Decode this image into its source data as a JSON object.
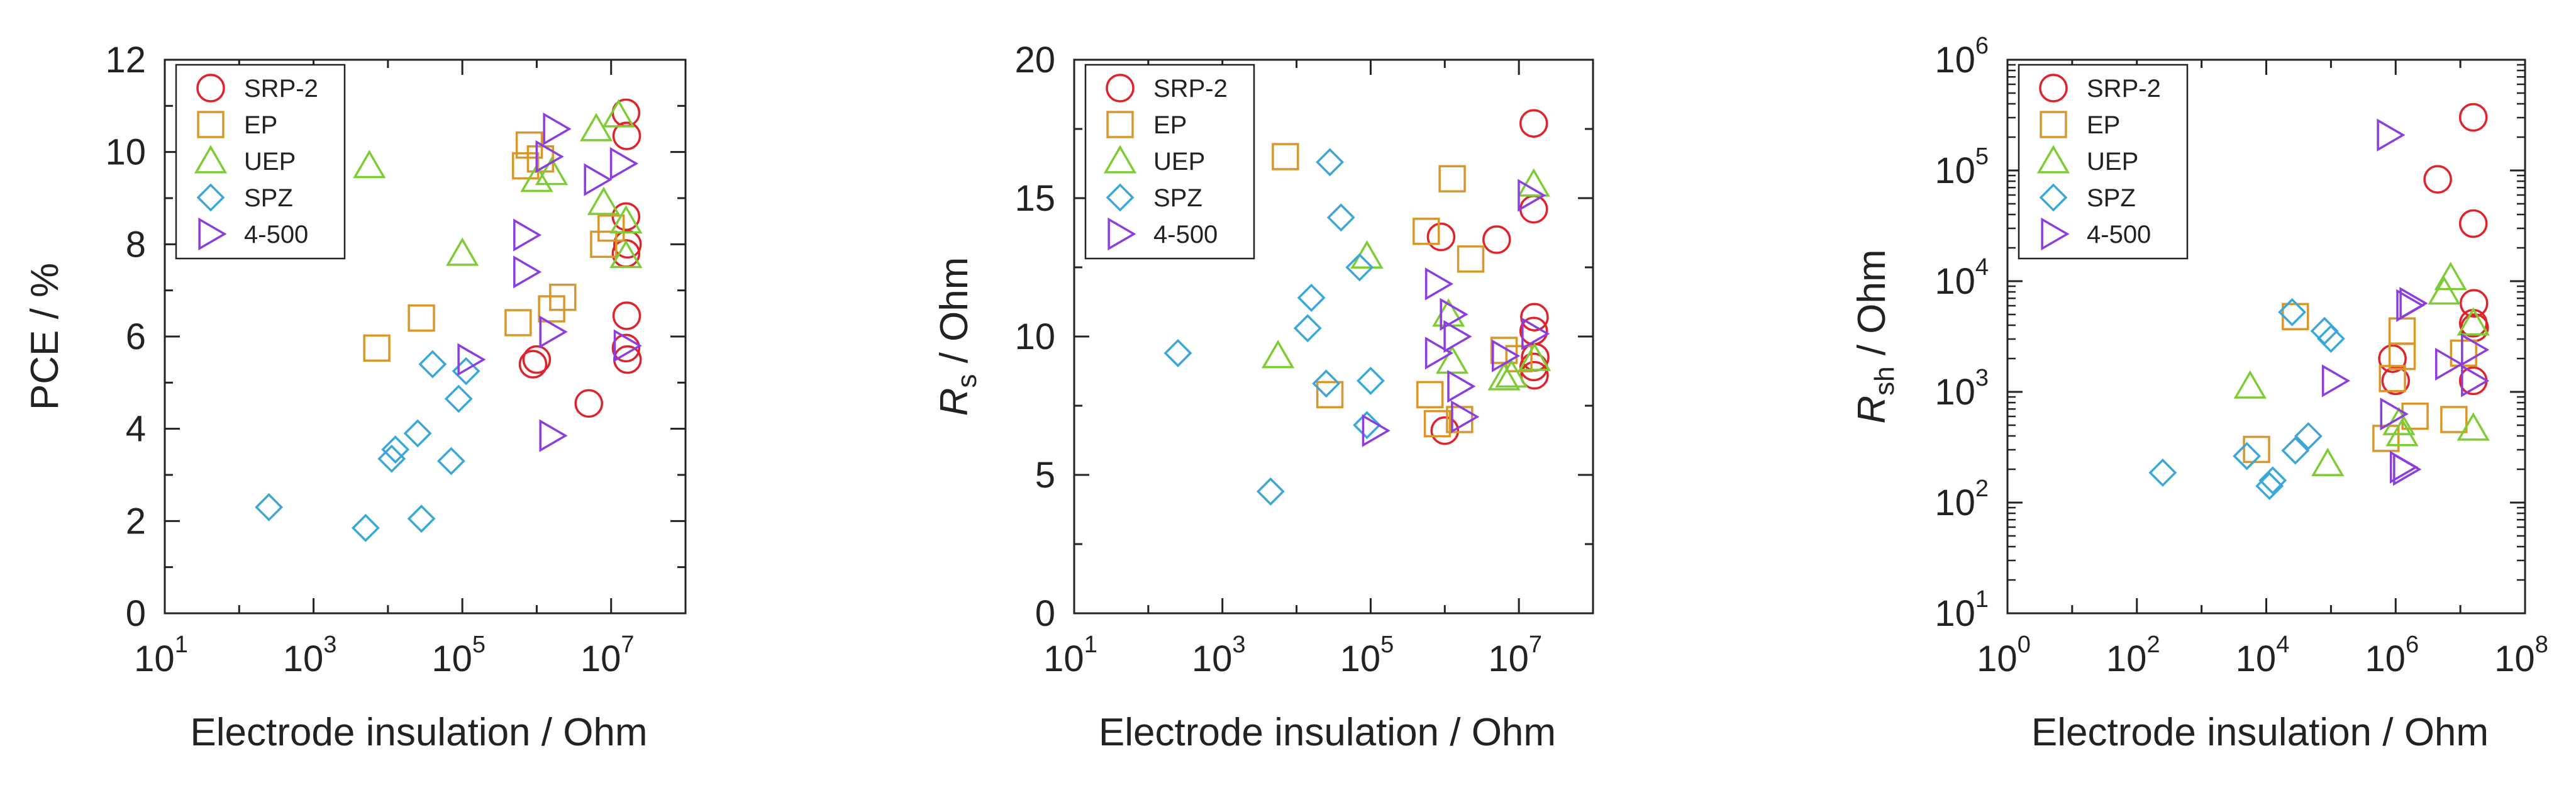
{
  "figure": {
    "background": "#ffffff",
    "axis_color": "#222222"
  },
  "legend_items": [
    {
      "key": "SRP-2",
      "label": "SRP-2",
      "marker": "circle",
      "color": "#e0232b"
    },
    {
      "key": "EP",
      "label": "EP",
      "marker": "square",
      "color": "#d9962b"
    },
    {
      "key": "UEP",
      "label": "UEP",
      "marker": "triangle-up",
      "color": "#7dcc33"
    },
    {
      "key": "SPZ",
      "label": "SPZ",
      "marker": "diamond",
      "color": "#39a7d8"
    },
    {
      "key": "4-500",
      "label": "4-500",
      "marker": "triangle-right",
      "color": "#8b3ddf"
    }
  ],
  "chart_data": [
    {
      "type": "scatter",
      "title": "",
      "xlabel": "Electrode insulation / Ohm",
      "ylabel": "PCE / %",
      "ylabel_parts": {
        "main": "PCE / %",
        "sub": ""
      },
      "xscale": "log",
      "yscale": "linear",
      "xlim_exponent": [
        1,
        8
      ],
      "ylim": [
        0,
        12
      ],
      "x_ticks": [
        {
          "base": "10",
          "exp": "1",
          "value": 1
        },
        {
          "base": "10",
          "exp": "3",
          "value": 3
        },
        {
          "base": "10",
          "exp": "5",
          "value": 5
        },
        {
          "base": "10",
          "exp": "7",
          "value": 7
        }
      ],
      "y_ticks": [
        {
          "label": "0",
          "value": 0
        },
        {
          "label": "2",
          "value": 2
        },
        {
          "label": "4",
          "value": 4
        },
        {
          "label": "6",
          "value": 6
        },
        {
          "label": "8",
          "value": 8
        },
        {
          "label": "10",
          "value": 10
        },
        {
          "label": "12",
          "value": 12
        }
      ],
      "legend": "top-left",
      "series": [
        {
          "name": "SRP-2",
          "points": [
            [
              5.95,
              5.4
            ],
            [
              6.0,
              5.5
            ],
            [
              6.7,
              4.55
            ],
            [
              7.2,
              10.85
            ],
            [
              7.21,
              10.35
            ],
            [
              7.2,
              8.6
            ],
            [
              7.22,
              8.0
            ],
            [
              7.2,
              7.8
            ],
            [
              7.21,
              6.45
            ],
            [
              7.2,
              5.75
            ],
            [
              7.22,
              5.5
            ]
          ]
        },
        {
          "name": "EP",
          "points": [
            [
              3.85,
              5.75
            ],
            [
              4.45,
              6.4
            ],
            [
              5.75,
              6.3
            ],
            [
              5.85,
              9.7
            ],
            [
              5.9,
              10.15
            ],
            [
              6.05,
              9.85
            ],
            [
              6.2,
              6.6
            ],
            [
              6.35,
              6.85
            ],
            [
              6.9,
              8.0
            ],
            [
              7.0,
              8.35
            ]
          ]
        },
        {
          "name": "UEP",
          "points": [
            [
              3.75,
              9.7
            ],
            [
              5.0,
              7.8
            ],
            [
              6.0,
              9.4
            ],
            [
              6.2,
              9.55
            ],
            [
              6.8,
              10.5
            ],
            [
              6.9,
              8.9
            ],
            [
              7.1,
              10.8
            ],
            [
              7.2,
              8.5
            ],
            [
              7.2,
              7.75
            ]
          ]
        },
        {
          "name": "SPZ",
          "points": [
            [
              2.4,
              2.3
            ],
            [
              3.7,
              1.85
            ],
            [
              4.05,
              3.35
            ],
            [
              4.1,
              3.55
            ],
            [
              4.4,
              3.9
            ],
            [
              4.45,
              2.05
            ],
            [
              4.6,
              5.4
            ],
            [
              4.85,
              3.3
            ],
            [
              4.95,
              4.65
            ],
            [
              5.05,
              5.25
            ]
          ]
        },
        {
          "name": "4-500",
          "points": [
            [
              5.1,
              5.5
            ],
            [
              5.85,
              8.2
            ],
            [
              5.85,
              7.4
            ],
            [
              6.15,
              9.9
            ],
            [
              6.2,
              6.1
            ],
            [
              6.2,
              3.85
            ],
            [
              6.25,
              10.5
            ],
            [
              6.8,
              9.4
            ],
            [
              7.15,
              9.75
            ],
            [
              7.2,
              5.8
            ]
          ]
        }
      ]
    },
    {
      "type": "scatter",
      "title": "",
      "xlabel": "Electrode insulation / Ohm",
      "ylabel": "Rs / Ohm",
      "ylabel_parts": {
        "main": "R",
        "sub": "s",
        "unit": " / Ohm"
      },
      "xscale": "log",
      "yscale": "linear",
      "xlim_exponent": [
        1,
        8
      ],
      "ylim": [
        0,
        20
      ],
      "x_ticks": [
        {
          "base": "10",
          "exp": "1",
          "value": 1
        },
        {
          "base": "10",
          "exp": "3",
          "value": 3
        },
        {
          "base": "10",
          "exp": "5",
          "value": 5
        },
        {
          "base": "10",
          "exp": "7",
          "value": 7
        }
      ],
      "y_ticks": [
        {
          "label": "0",
          "value": 0
        },
        {
          "label": "5",
          "value": 5
        },
        {
          "label": "10",
          "value": 10
        },
        {
          "label": "15",
          "value": 15
        },
        {
          "label": "20",
          "value": 20
        }
      ],
      "legend": "top-left",
      "series": [
        {
          "name": "SRP-2",
          "points": [
            [
              5.95,
              13.6
            ],
            [
              6.0,
              6.6
            ],
            [
              6.7,
              13.5
            ],
            [
              7.2,
              17.7
            ],
            [
              7.2,
              14.6
            ],
            [
              7.21,
              10.7
            ],
            [
              7.2,
              10.2
            ],
            [
              7.22,
              9.25
            ],
            [
              7.2,
              8.9
            ],
            [
              7.21,
              8.6
            ]
          ]
        },
        {
          "name": "EP",
          "points": [
            [
              3.85,
              16.5
            ],
            [
              4.45,
              7.9
            ],
            [
              5.75,
              13.8
            ],
            [
              5.8,
              7.9
            ],
            [
              5.9,
              6.85
            ],
            [
              6.1,
              15.7
            ],
            [
              6.2,
              7.0
            ],
            [
              6.35,
              12.8
            ],
            [
              6.8,
              9.5
            ],
            [
              7.0,
              9.2
            ]
          ]
        },
        {
          "name": "UEP",
          "points": [
            [
              3.75,
              9.3
            ],
            [
              4.95,
              12.9
            ],
            [
              6.05,
              10.8
            ],
            [
              6.1,
              9.1
            ],
            [
              6.8,
              8.5
            ],
            [
              6.9,
              8.6
            ],
            [
              7.2,
              15.5
            ],
            [
              7.21,
              9.2
            ]
          ]
        },
        {
          "name": "SPZ",
          "points": [
            [
              2.4,
              9.4
            ],
            [
              3.65,
              4.4
            ],
            [
              4.15,
              10.3
            ],
            [
              4.2,
              11.4
            ],
            [
              4.4,
              8.3
            ],
            [
              4.45,
              16.3
            ],
            [
              4.6,
              14.3
            ],
            [
              4.85,
              12.5
            ],
            [
              4.95,
              6.8
            ],
            [
              5.0,
              8.4
            ]
          ]
        },
        {
          "name": "4-500",
          "points": [
            [
              5.05,
              6.6
            ],
            [
              5.9,
              11.9
            ],
            [
              5.9,
              9.4
            ],
            [
              6.1,
              10.8
            ],
            [
              6.15,
              10.0
            ],
            [
              6.2,
              8.2
            ],
            [
              6.25,
              7.1
            ],
            [
              6.8,
              9.3
            ],
            [
              7.15,
              15.1
            ],
            [
              7.2,
              10.1
            ]
          ]
        }
      ]
    },
    {
      "type": "scatter",
      "title": "",
      "xlabel": "Electrode insulation / Ohm",
      "ylabel": "Rsh / Ohm",
      "ylabel_parts": {
        "main": "R",
        "sub": "sh",
        "unit": " / Ohm"
      },
      "xscale": "log",
      "yscale": "log",
      "xlim_exponent": [
        0,
        8
      ],
      "ylim_exponent": [
        1,
        6
      ],
      "x_ticks": [
        {
          "base": "10",
          "exp": "0",
          "value": 0
        },
        {
          "base": "10",
          "exp": "2",
          "value": 2
        },
        {
          "base": "10",
          "exp": "4",
          "value": 4
        },
        {
          "base": "10",
          "exp": "6",
          "value": 6
        },
        {
          "base": "10",
          "exp": "8",
          "value": 8
        }
      ],
      "y_ticks": [
        {
          "base": "10",
          "exp": "1",
          "value": 1
        },
        {
          "base": "10",
          "exp": "2",
          "value": 2
        },
        {
          "base": "10",
          "exp": "3",
          "value": 3
        },
        {
          "base": "10",
          "exp": "4",
          "value": 4
        },
        {
          "base": "10",
          "exp": "5",
          "value": 5
        },
        {
          "base": "10",
          "exp": "6",
          "value": 6
        }
      ],
      "legend": "top-left",
      "series": [
        {
          "name": "SRP-2",
          "points": [
            [
              5.95,
              3.3
            ],
            [
              6.0,
              3.1
            ],
            [
              6.65,
              4.92
            ],
            [
              7.2,
              5.48
            ],
            [
              7.2,
              4.52
            ],
            [
              7.21,
              3.8
            ],
            [
              7.2,
              3.62
            ],
            [
              7.22,
              3.58
            ],
            [
              7.2,
              3.1
            ]
          ]
        },
        {
          "name": "EP",
          "points": [
            [
              3.85,
              2.48
            ],
            [
              4.45,
              3.68
            ],
            [
              5.85,
              2.58
            ],
            [
              5.95,
              3.12
            ],
            [
              6.1,
              3.32
            ],
            [
              6.1,
              3.55
            ],
            [
              6.3,
              2.78
            ],
            [
              6.9,
              2.75
            ],
            [
              7.05,
              3.35
            ]
          ]
        },
        {
          "name": "UEP",
          "points": [
            [
              3.75,
              3.05
            ],
            [
              4.95,
              2.35
            ],
            [
              6.05,
              2.72
            ],
            [
              6.1,
              2.62
            ],
            [
              6.75,
              3.9
            ],
            [
              6.85,
              4.03
            ],
            [
              7.2,
              3.62
            ],
            [
              7.2,
              2.67
            ]
          ]
        },
        {
          "name": "SPZ",
          "points": [
            [
              2.4,
              2.27
            ],
            [
              3.7,
              2.42
            ],
            [
              4.05,
              2.15
            ],
            [
              4.1,
              2.2
            ],
            [
              4.4,
              3.72
            ],
            [
              4.45,
              2.47
            ],
            [
              4.65,
              2.6
            ],
            [
              4.9,
              3.55
            ],
            [
              5.0,
              3.48
            ]
          ]
        },
        {
          "name": "4-500",
          "points": [
            [
              5.05,
              3.1
            ],
            [
              5.9,
              5.32
            ],
            [
              5.95,
              2.8
            ],
            [
              6.1,
              2.32
            ],
            [
              6.15,
              2.3
            ],
            [
              6.2,
              3.78
            ],
            [
              6.25,
              3.8
            ],
            [
              6.8,
              3.25
            ],
            [
              7.2,
              3.38
            ],
            [
              7.2,
              3.1
            ]
          ]
        }
      ]
    }
  ]
}
